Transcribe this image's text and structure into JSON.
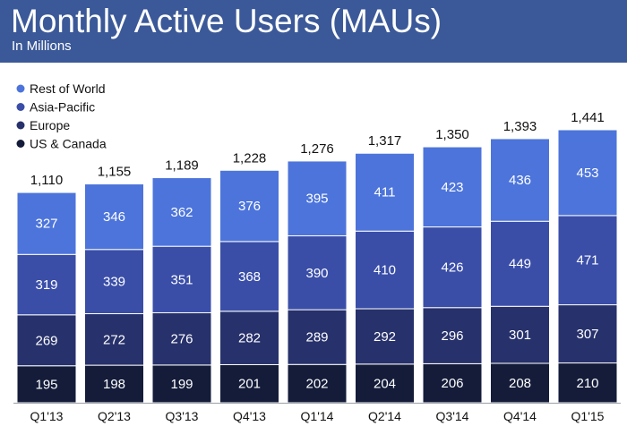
{
  "header": {
    "title": "Monthly Active Users (MAUs)",
    "subtitle": "In Millions",
    "background": "#3b5998"
  },
  "chart_data": {
    "type": "bar",
    "stacked": true,
    "title": "Monthly Active Users (MAUs)",
    "subtitle": "In Millions",
    "categories": [
      "Q1'13",
      "Q2'13",
      "Q3'13",
      "Q4'13",
      "Q1'14",
      "Q2'14",
      "Q3'14",
      "Q4'14",
      "Q1'15"
    ],
    "totals": [
      "1,110",
      "1,155",
      "1,189",
      "1,228",
      "1,276",
      "1,317",
      "1,350",
      "1,393",
      "1,441"
    ],
    "series": [
      {
        "name": "US & Canada",
        "color": "#141c3a",
        "values": [
          195,
          198,
          199,
          201,
          202,
          204,
          206,
          208,
          210
        ]
      },
      {
        "name": "Europe",
        "color": "#27316b",
        "values": [
          269,
          272,
          276,
          282,
          289,
          292,
          296,
          301,
          307
        ]
      },
      {
        "name": "Asia-Pacific",
        "color": "#3a4ea8",
        "values": [
          319,
          339,
          351,
          368,
          390,
          410,
          426,
          449,
          471
        ]
      },
      {
        "name": "Rest of World",
        "color": "#4c74db",
        "values": [
          327,
          346,
          362,
          376,
          395,
          411,
          423,
          436,
          453
        ]
      }
    ],
    "legend_order": [
      "Rest of World",
      "Asia-Pacific",
      "Europe",
      "US & Canada"
    ],
    "legend_position": "top-left",
    "ylim": [
      0,
      1441
    ],
    "grid": false
  }
}
